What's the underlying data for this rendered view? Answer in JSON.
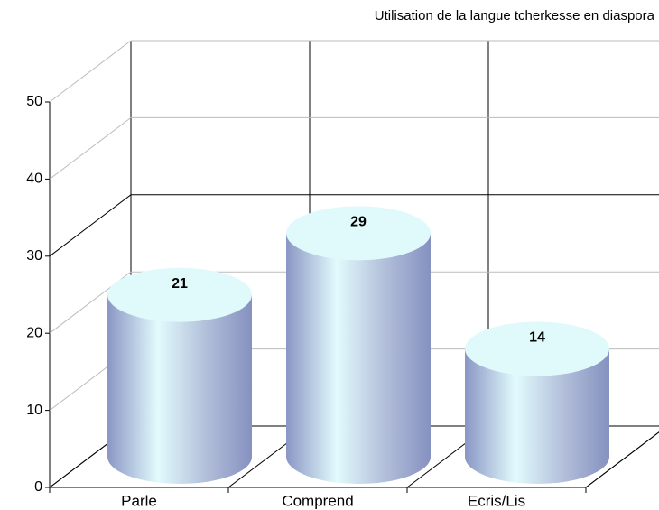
{
  "chart_data": {
    "type": "bar",
    "title": "Utilisation de la langue tcherkesse en diaspora",
    "categories": [
      "Parle",
      "Comprend",
      "Ecris/Lis"
    ],
    "values": [
      21,
      29,
      14
    ],
    "ylim": [
      0,
      50
    ],
    "yticks": [
      0,
      10,
      20,
      30,
      40,
      50
    ],
    "grid": true
  }
}
